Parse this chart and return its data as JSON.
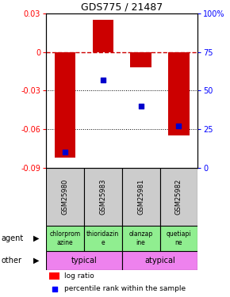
{
  "title": "GDS775 / 21487",
  "samples": [
    "GSM25980",
    "GSM25983",
    "GSM25981",
    "GSM25982"
  ],
  "log_ratios": [
    -0.082,
    0.025,
    -0.012,
    -0.065
  ],
  "percentile_ranks": [
    10,
    57,
    40,
    27
  ],
  "agents": [
    "chlorprom\nazine",
    "thioridazin\ne",
    "olanzap\nine",
    "quetiapi\nne"
  ],
  "categories": [
    [
      "typical",
      0,
      2
    ],
    [
      "atypical",
      2,
      4
    ]
  ],
  "category_color": "#ee82ee",
  "agent_color": "#90ee90",
  "ylim_left": [
    -0.09,
    0.03
  ],
  "ylim_right": [
    0,
    100
  ],
  "yticks_left": [
    -0.09,
    -0.06,
    -0.03,
    0,
    0.03
  ],
  "yticks_right": [
    0,
    25,
    50,
    75,
    100
  ],
  "bar_color": "#cc0000",
  "dot_color": "#0000cc",
  "zero_line_color": "#cc0000",
  "sample_bg_color": "#cccccc",
  "bar_width": 0.55
}
